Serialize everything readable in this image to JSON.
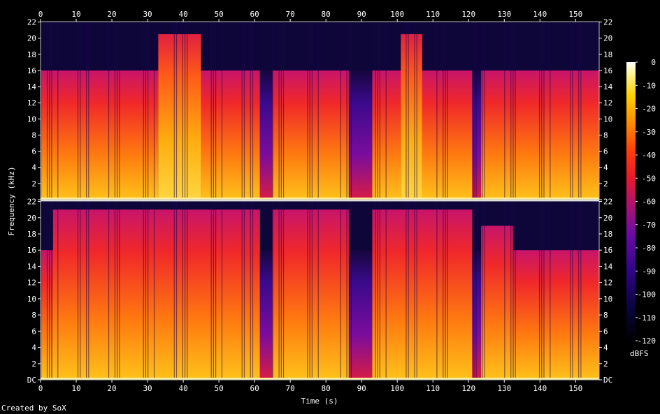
{
  "chart_data": {
    "type": "heatmap",
    "generator_credit": "Created by SoX",
    "xlabel": "Time (s)",
    "ylabel": "Frequency (kHz)",
    "colorbar_label": "dBFS",
    "x_range": [
      0,
      156.6
    ],
    "x_ticks": [
      0,
      10,
      20,
      30,
      40,
      50,
      60,
      70,
      80,
      90,
      100,
      110,
      120,
      130,
      140,
      150
    ],
    "y_range_khz": [
      0,
      22.05
    ],
    "y_ticks": [
      "DC",
      "2",
      "4",
      "6",
      "8",
      "10",
      "12",
      "14",
      "16",
      "18",
      "20",
      "22"
    ],
    "color_range_dbfs": [
      -120,
      0
    ],
    "colorbar_ticks": [
      0,
      -10,
      -20,
      -30,
      -40,
      -50,
      -60,
      -70,
      -80,
      -90,
      -100,
      -110,
      -120
    ],
    "channels": [
      {
        "segments": [
          {
            "start": 0,
            "end": 33,
            "cutoff_khz": 16,
            "level": "medium"
          },
          {
            "start": 33,
            "end": 45,
            "cutoff_khz": 20.5,
            "level": "high"
          },
          {
            "start": 45,
            "end": 61.5,
            "cutoff_khz": 16,
            "level": "medium"
          },
          {
            "start": 61.5,
            "end": 65,
            "cutoff_khz": 16,
            "level": "low"
          },
          {
            "start": 65,
            "end": 86.5,
            "cutoff_khz": 16,
            "level": "medium"
          },
          {
            "start": 86.5,
            "end": 93,
            "cutoff_khz": 16,
            "level": "low"
          },
          {
            "start": 93,
            "end": 101,
            "cutoff_khz": 16,
            "level": "medium"
          },
          {
            "start": 101,
            "end": 107,
            "cutoff_khz": 20.5,
            "level": "high"
          },
          {
            "start": 107,
            "end": 121,
            "cutoff_khz": 16,
            "level": "medium"
          },
          {
            "start": 121,
            "end": 123.5,
            "cutoff_khz": 16,
            "level": "low"
          },
          {
            "start": 123.5,
            "end": 156.6,
            "cutoff_khz": 16,
            "level": "medium"
          }
        ]
      },
      {
        "segments": [
          {
            "start": 0,
            "end": 3.5,
            "cutoff_khz": 16,
            "level": "medium"
          },
          {
            "start": 3.5,
            "end": 61.5,
            "cutoff_khz": 21,
            "level": "medium"
          },
          {
            "start": 61.5,
            "end": 65,
            "cutoff_khz": 16,
            "level": "low"
          },
          {
            "start": 65,
            "end": 86.5,
            "cutoff_khz": 21,
            "level": "medium"
          },
          {
            "start": 86.5,
            "end": 93,
            "cutoff_khz": 16,
            "level": "low"
          },
          {
            "start": 93,
            "end": 121,
            "cutoff_khz": 21,
            "level": "medium"
          },
          {
            "start": 121,
            "end": 123.5,
            "cutoff_khz": 16,
            "level": "low"
          },
          {
            "start": 123.5,
            "end": 132.5,
            "cutoff_khz": 19,
            "level": "medium"
          },
          {
            "start": 132.5,
            "end": 156.6,
            "cutoff_khz": 16,
            "level": "medium"
          }
        ]
      }
    ]
  }
}
